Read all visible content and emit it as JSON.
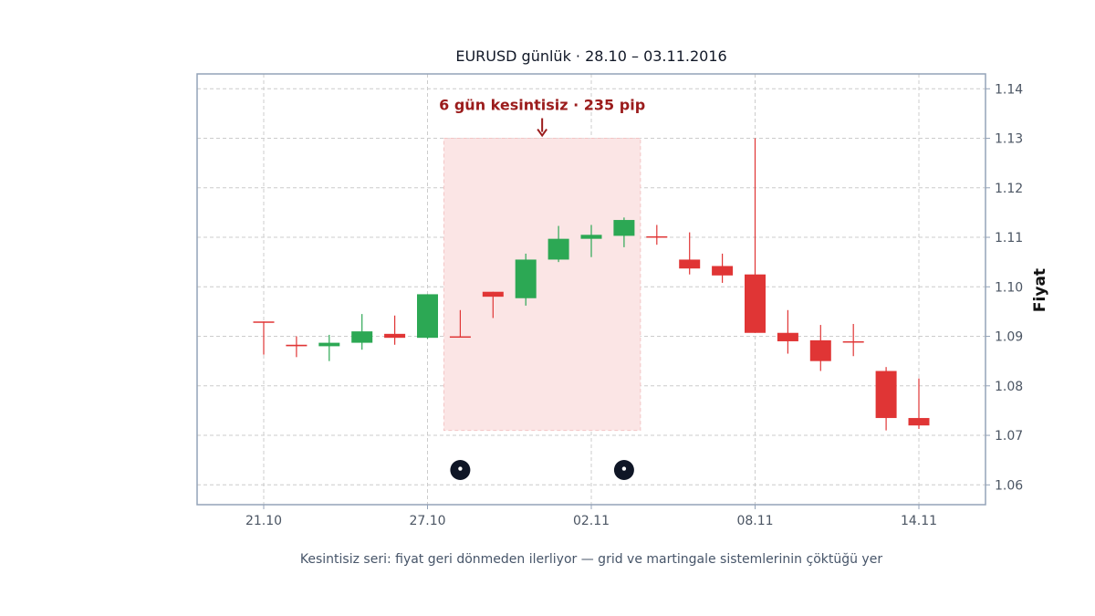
{
  "chart_data": {
    "type": "candlestick",
    "title": "EURUSD günlük · 28.10 – 03.11.2016",
    "ylabel": "Fiyat",
    "caption": "Kesintisiz seri: fiyat geri dönmeden ilerliyor — grid ve martingale sistemlerinin çöktüğü yer",
    "ylim": [
      1.056,
      1.143
    ],
    "yticks": [
      "1.06",
      "1.07",
      "1.08",
      "1.09",
      "1.10",
      "1.11",
      "1.12",
      "1.13",
      "1.14"
    ],
    "xticks": [
      {
        "label": "21.10",
        "index": 0
      },
      {
        "label": "27.10",
        "index": 5
      },
      {
        "label": "02.11",
        "index": 10
      },
      {
        "label": "08.11",
        "index": 15
      },
      {
        "label": "14.11",
        "index": 20
      }
    ],
    "grid": true,
    "colors": {
      "up": "#2ca854",
      "down": "#e03535",
      "highlight": "#fbe5e5",
      "annotation": "#9b1c1c",
      "marker": "#0f1626",
      "frame": "#94a3b8"
    },
    "candles": [
      {
        "o": 1.093,
        "h": 1.093,
        "l": 1.0863,
        "c": 1.0928
      },
      {
        "o": 1.0883,
        "h": 1.09,
        "l": 1.0858,
        "c": 1.088
      },
      {
        "o": 1.088,
        "h": 1.0903,
        "l": 1.085,
        "c": 1.0887
      },
      {
        "o": 1.0887,
        "h": 1.0945,
        "l": 1.0873,
        "c": 1.091
      },
      {
        "o": 1.0905,
        "h": 1.0942,
        "l": 1.0883,
        "c": 1.0897
      },
      {
        "o": 1.0897,
        "h": 1.0985,
        "l": 1.0895,
        "c": 1.0985
      },
      {
        "o": 1.09,
        "h": 1.0953,
        "l": 1.0898,
        "c": 1.0898
      },
      {
        "o": 1.099,
        "h": 1.099,
        "l": 1.0937,
        "c": 1.098
      },
      {
        "o": 1.0977,
        "h": 1.1067,
        "l": 1.0962,
        "c": 1.1055
      },
      {
        "o": 1.1055,
        "h": 1.1123,
        "l": 1.105,
        "c": 1.1097
      },
      {
        "o": 1.1097,
        "h": 1.1125,
        "l": 1.106,
        "c": 1.1105
      },
      {
        "o": 1.1103,
        "h": 1.114,
        "l": 1.108,
        "c": 1.1135
      },
      {
        "o": 1.1102,
        "h": 1.1125,
        "l": 1.1085,
        "c": 1.11
      },
      {
        "o": 1.1055,
        "h": 1.111,
        "l": 1.1025,
        "c": 1.1037
      },
      {
        "o": 1.1042,
        "h": 1.1067,
        "l": 1.1008,
        "c": 1.1023
      },
      {
        "o": 1.1025,
        "h": 1.13,
        "l": 1.0907,
        "c": 1.0907
      },
      {
        "o": 1.0907,
        "h": 1.0953,
        "l": 1.0865,
        "c": 1.089
      },
      {
        "o": 1.0892,
        "h": 1.0923,
        "l": 1.083,
        "c": 1.085
      },
      {
        "o": 1.089,
        "h": 1.0925,
        "l": 1.086,
        "c": 1.089
      },
      {
        "o": 1.083,
        "h": 1.0838,
        "l": 1.071,
        "c": 1.0735
      },
      {
        "o": 1.0735,
        "h": 1.0815,
        "l": 1.0713,
        "c": 1.072
      }
    ],
    "highlight": {
      "from_index": 5.5,
      "to_index": 11.5,
      "y_from": 1.071,
      "y_to": 1.13,
      "label": "6 gün kesintisiz · 235 pip"
    },
    "markers": [
      {
        "index": 6,
        "y": 1.063
      },
      {
        "index": 11,
        "y": 1.063
      }
    ]
  }
}
